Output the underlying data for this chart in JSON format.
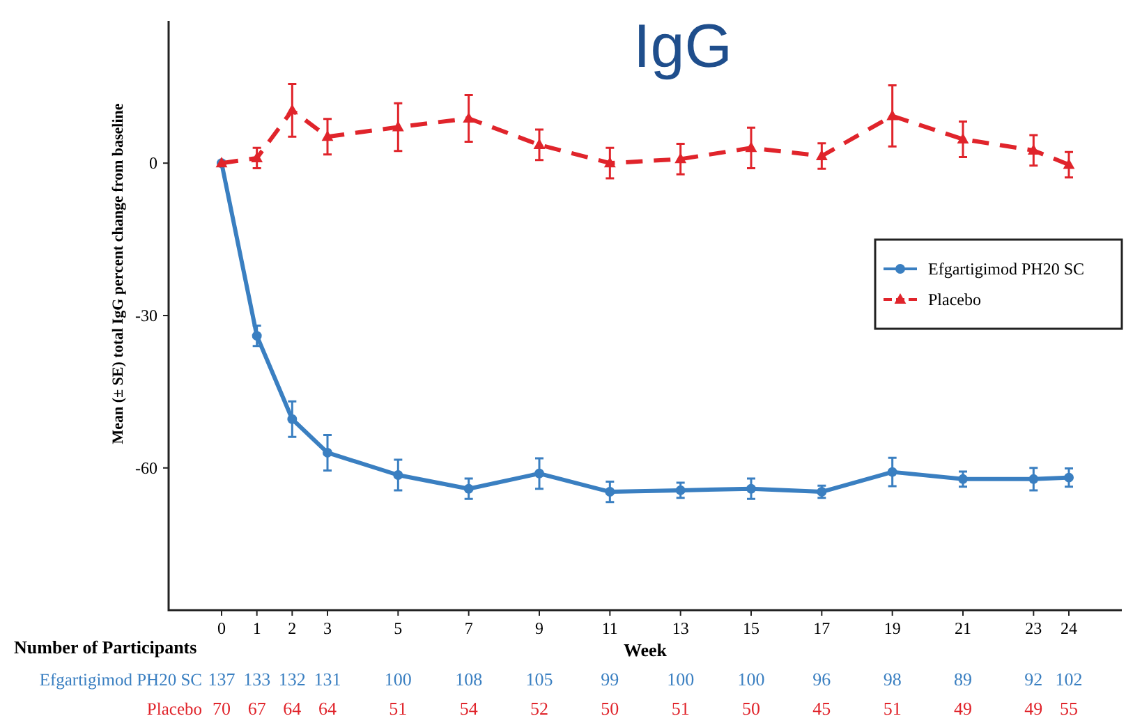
{
  "chart_data": {
    "type": "line",
    "title": "IgG",
    "xlabel": "Week",
    "ylabel": "Mean (± SE) total IgG percent change from baseline",
    "x": [
      0,
      1,
      2,
      3,
      5,
      7,
      9,
      11,
      13,
      15,
      17,
      19,
      21,
      23,
      24
    ],
    "xlim": [
      -1.5,
      25.5
    ],
    "xticks": [
      0,
      1,
      2,
      3,
      5,
      7,
      9,
      11,
      13,
      15,
      17,
      19,
      21,
      23,
      24
    ],
    "ylim": [
      -88,
      28
    ],
    "yticks": [
      -60,
      -30,
      0
    ],
    "grid": false,
    "legend": "right",
    "series": [
      {
        "name": "Efgartigimod PH20 SC",
        "color": "#3a7fc1",
        "marker": "circle",
        "line_style": "solid",
        "values": [
          0,
          -34,
          -50.4,
          -57,
          -61.4,
          -64.1,
          -61.1,
          -64.7,
          -64.4,
          -64.1,
          -64.7,
          -60.8,
          -62.2,
          -62.2,
          -61.9
        ],
        "errors": [
          null,
          2,
          3.5,
          3.5,
          3,
          2,
          3,
          2,
          1.5,
          2,
          1.2,
          2.8,
          1.5,
          2.2,
          1.8
        ]
      },
      {
        "name": "Placebo",
        "color": "#e0242b",
        "marker": "triangle",
        "line_style": "dashed",
        "values": [
          0,
          1,
          10.4,
          5.2,
          7.1,
          8.8,
          3.6,
          0,
          0.8,
          3,
          1.4,
          9.3,
          4.7,
          2.5,
          -0.3
        ],
        "errors": [
          null,
          2,
          5.2,
          3.5,
          4.7,
          4.6,
          3,
          3,
          3,
          4,
          2.5,
          6,
          3.5,
          3,
          2.5
        ]
      }
    ],
    "annotations": [
      "Number of Participants",
      "137",
      "133",
      "132",
      "131",
      "100",
      "108",
      "105",
      "99",
      "100",
      "100",
      "96",
      "98",
      "89",
      "92",
      "102",
      "70",
      "67",
      "64",
      "64",
      "51",
      "54",
      "52",
      "50",
      "51",
      "50",
      "45",
      "51",
      "49",
      "49",
      "55"
    ]
  }
}
